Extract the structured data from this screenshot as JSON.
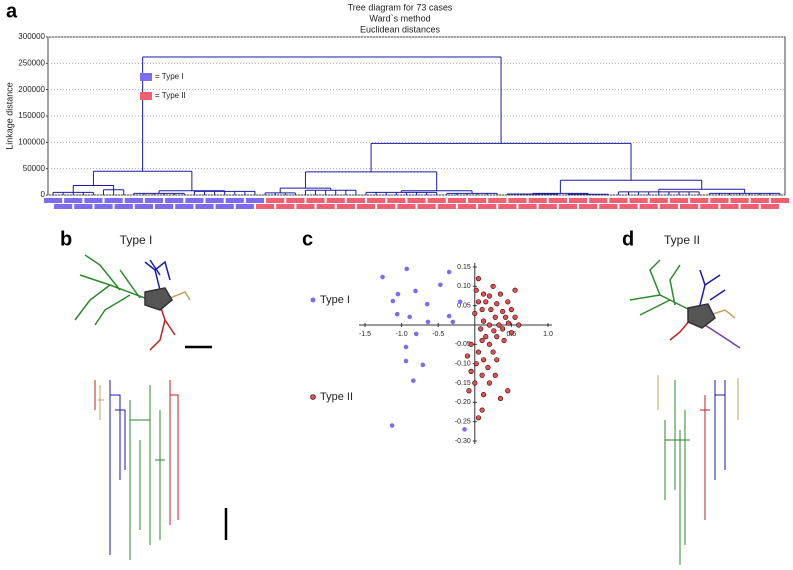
{
  "panel_labels": [
    "a",
    "b",
    "c",
    "d"
  ],
  "neuron_titles": [
    "Type I",
    "Type II"
  ],
  "chart_data": [
    {
      "type": "dendrogram",
      "title": "Tree diagram for 73 cases",
      "subtitle": [
        "Ward`s method",
        "Euclidean distances"
      ],
      "ylabel": "Linkage distance",
      "ylim": [
        0,
        300000
      ],
      "yticks": [
        0,
        50000,
        100000,
        150000,
        200000,
        250000,
        300000
      ],
      "grid": true,
      "line_color": "#1a1aa8",
      "legend": [
        {
          "name": "= Type I",
          "color": "#7b6cf0"
        },
        {
          "name": "= Type II",
          "color": "#f06070"
        }
      ],
      "tree": {
        "h": 262000,
        "c": [
          {
            "h": 45000,
            "c": [
              {
                "h": 18000,
                "c": [
                  {
                    "h": 5000,
                    "n": 5,
                    "type": 0
                  },
                  {
                    "h": 10000,
                    "n": 3,
                    "type": 0
                  }
                ]
              },
              {
                "h": 8000,
                "c": [
                  {
                    "h": 3000,
                    "n": 6,
                    "type": 0
                  },
                  {
                    "h": 7000,
                    "n": 7,
                    "type": 0
                  }
                ]
              }
            ]
          },
          {
            "h": 98000,
            "c": [
              {
                "h": 44000,
                "c": [
                  {
                    "h": 13000,
                    "c": [
                      {
                        "h": 4000,
                        "n": 4,
                        "type": 1
                      },
                      {
                        "h": 9000,
                        "n": 6,
                        "type": 1
                      }
                    ]
                  },
                  {
                    "h": 8000,
                    "c": [
                      {
                        "h": 5000,
                        "n": 8,
                        "type": 1
                      },
                      {
                        "h": 3000,
                        "n": 6,
                        "type": 1
                      }
                    ]
                  }
                ]
              },
              {
                "h": 28000,
                "c": [
                  {
                    "h": 3000,
                    "c": [
                      {
                        "h": 2000,
                        "n": 6,
                        "type": 1
                      },
                      {
                        "h": 1500,
                        "n": 5,
                        "type": 1
                      }
                    ]
                  },
                  {
                    "h": 11000,
                    "c": [
                      {
                        "h": 6000,
                        "n": 9,
                        "type": 1
                      },
                      {
                        "h": 3000,
                        "n": 8,
                        "type": 1
                      }
                    ]
                  }
                ]
              }
            ]
          }
        ]
      }
    },
    {
      "type": "scatter",
      "xlim": [
        -1.5,
        1.0
      ],
      "xticks": [
        -1.5,
        {
          "value": -1,
          "label": "-1.0"
        },
        -0.5,
        0.5,
        {
          "value": 1,
          "label": "1.0"
        }
      ],
      "ylim": [
        -0.3,
        0.15
      ],
      "yticks": [
        0.15,
        {
          "value": 0.1,
          "label": "0.10"
        },
        0.05,
        -0.05,
        {
          "value": -0.1,
          "label": "-0.10"
        },
        -0.15,
        {
          "value": -0.2,
          "label": "-0.20"
        },
        -0.25,
        {
          "value": -0.3,
          "label": "-0.30"
        }
      ],
      "series": [
        {
          "name": "Type I",
          "color": "#7b6cf0",
          "x": [
            -0.93,
            -1.26,
            -0.81,
            -0.47,
            -0.35,
            -1.05,
            -0.65,
            -1.12,
            -0.89,
            -0.35,
            -0.8,
            -0.94,
            -1.06,
            -0.64,
            -0.3,
            -0.71,
            -0.94,
            -0.84,
            -1.13,
            -0.14,
            -0.2
          ],
          "y": [
            0.145,
            0.124,
            0.088,
            0.104,
            0.137,
            0.08,
            0.054,
            0.062,
            0.021,
            0.023,
            -0.023,
            -0.057,
            0.028,
            0.008,
            0.008,
            -0.103,
            -0.093,
            -0.144,
            -0.26,
            -0.27,
            0.06
          ]
        },
        {
          "name": "Type II",
          "color": "#e05050",
          "x": [
            0.05,
            0.25,
            0.02,
            0.12,
            0.2,
            0.35,
            0.55,
            0.05,
            0.15,
            0.3,
            0.45,
            0.1,
            0.22,
            0.38,
            0.5,
            0.0,
            0.28,
            0.42,
            0.55,
            0.12,
            0.2,
            0.33,
            0.46,
            0.6,
            0.08,
            0.26,
            0.38,
            0.5,
            0.15,
            0.3,
            0.1,
            0.4,
            -0.05,
            0.2,
            0.05,
            0.25,
            -0.1,
            0.12,
            0.3,
            0.02,
            0.18,
            -0.05,
            0.1,
            0.28,
            0.0,
            0.2,
            -0.08,
            0.45,
            0.12,
            0.35,
            0.1,
            0.05
          ],
          "y": [
            0.12,
            0.1,
            0.09,
            0.08,
            0.075,
            0.08,
            0.09,
            0.06,
            0.06,
            0.055,
            0.06,
            0.04,
            0.04,
            0.035,
            0.04,
            0.03,
            0.02,
            0.02,
            0.02,
            0.01,
            0.0,
            0.0,
            0.005,
            0.0,
            -0.01,
            -0.015,
            -0.01,
            -0.02,
            -0.03,
            -0.03,
            -0.04,
            -0.04,
            -0.05,
            -0.05,
            -0.07,
            -0.07,
            -0.08,
            -0.09,
            -0.09,
            -0.1,
            -0.11,
            -0.12,
            -0.13,
            -0.13,
            -0.15,
            -0.15,
            -0.17,
            -0.17,
            -0.18,
            -0.19,
            -0.22,
            -0.24
          ]
        }
      ]
    }
  ]
}
